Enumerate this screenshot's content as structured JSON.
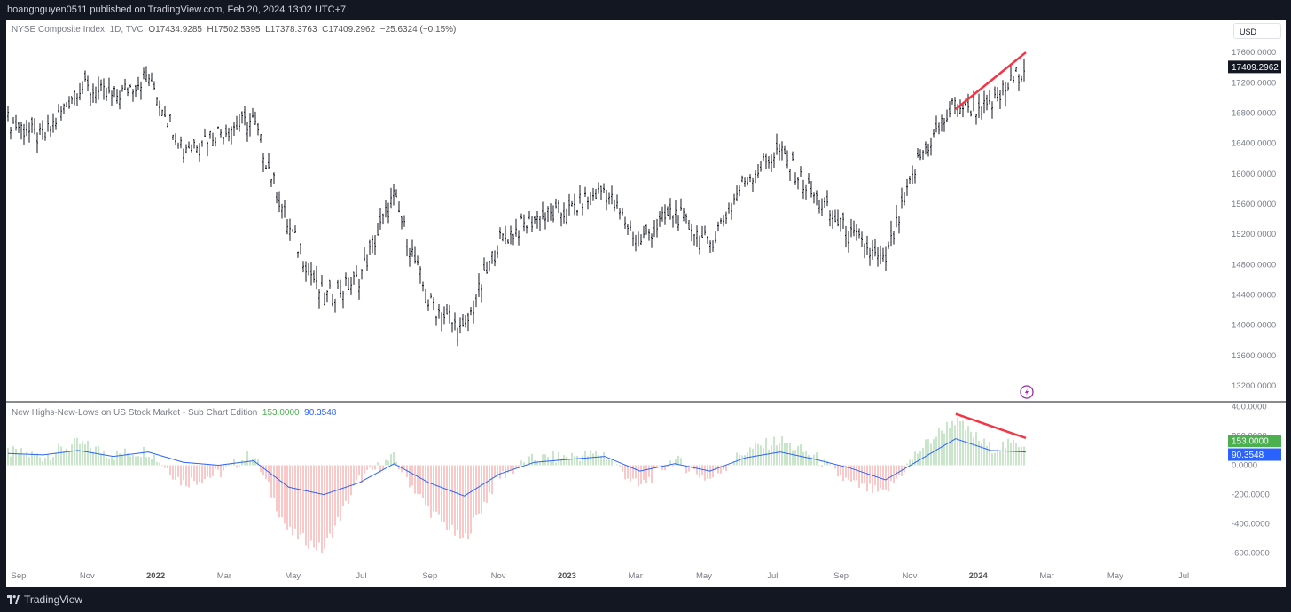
{
  "header": {
    "published": "hoangnguyen0511 published on TradingView.com, Feb 20, 2024 13:02 UTC+7"
  },
  "footer": {
    "brand": "TradingView"
  },
  "currency": "USD",
  "main_legend": {
    "symbol": "NYSE Composite Index, 1D, TVC",
    "open": "O17434.9285",
    "high": "H17502.5395",
    "low": "L17378.3763",
    "close": "C17409.2962",
    "change": "−25.6324 (−0.15%)"
  },
  "sub_legend": {
    "name": "New Highs-New-Lows on US Stock Market - Sub Chart Edition",
    "value1": "153.0000",
    "value2": "90.3548"
  },
  "colors": {
    "up_bar": "#a5d6a7",
    "down_bar": "#f5a3a3",
    "ma_line": "#2962ff",
    "trend": "#f23645",
    "price_bar": "#131722",
    "tag_green": "#4caf50",
    "tag_blue": "#2962ff",
    "tag_black": "#131722"
  },
  "chart_data": [
    {
      "type": "ohlc",
      "title": "NYSE Composite Index, 1D, TVC",
      "ylim": [
        13000,
        17800
      ],
      "y_ticks": [
        "17600.0000",
        "17200.0000",
        "16800.0000",
        "16400.0000",
        "16000.0000",
        "15600.0000",
        "15200.0000",
        "14800.0000",
        "14400.0000",
        "14000.0000",
        "13600.0000",
        "13200.0000"
      ],
      "last_price_tag": "17409.2962",
      "x_ticks": [
        "Sep",
        "Nov",
        "2022",
        "Mar",
        "May",
        "Jul",
        "Sep",
        "Nov",
        "2023",
        "Mar",
        "May",
        "Jul",
        "Sep",
        "Nov",
        "2024",
        "Mar",
        "May",
        "Jul"
      ],
      "bold_ticks": [
        "2022",
        "2023",
        "2024"
      ],
      "x": [
        "2021-09",
        "2021-10",
        "2021-11",
        "2021-12",
        "2022-01",
        "2022-02",
        "2022-03",
        "2022-04",
        "2022-05",
        "2022-06",
        "2022-07",
        "2022-08",
        "2022-09",
        "2022-10",
        "2022-11",
        "2022-12",
        "2023-01",
        "2023-02",
        "2023-03",
        "2023-04",
        "2023-05",
        "2023-06",
        "2023-07",
        "2023-08",
        "2023-09",
        "2023-10",
        "2023-11",
        "2023-12",
        "2024-01",
        "2024-02"
      ],
      "close": [
        16700,
        16450,
        17150,
        17000,
        17300,
        16350,
        16550,
        16700,
        15300,
        14350,
        14600,
        15700,
        14300,
        13900,
        15100,
        15400,
        15500,
        15800,
        15100,
        15500,
        15050,
        15900,
        16300,
        15700,
        15200,
        14800,
        16200,
        16900,
        16850,
        17409
      ],
      "trendline": [
        {
          "x": "2023-12",
          "y": 16850
        },
        {
          "x": "2024-02",
          "y": 17600
        }
      ]
    },
    {
      "type": "bar",
      "title": "New Highs-New-Lows on US Stock Market - Sub Chart Edition",
      "ylim": [
        -650,
        420
      ],
      "y_ticks": [
        "400.0000",
        "200.0000",
        "0.0000",
        "-200.0000",
        "-400.0000",
        "-600.0000"
      ],
      "last_value_tags": [
        "153.0000",
        "90.3548"
      ],
      "x": [
        "2021-09",
        "2021-10",
        "2021-11",
        "2021-12",
        "2022-01",
        "2022-02",
        "2022-03",
        "2022-04",
        "2022-05",
        "2022-06",
        "2022-07",
        "2022-08",
        "2022-09",
        "2022-10",
        "2022-11",
        "2022-12",
        "2023-01",
        "2023-02",
        "2023-03",
        "2023-04",
        "2023-05",
        "2023-06",
        "2023-07",
        "2023-08",
        "2023-09",
        "2023-10",
        "2023-11",
        "2023-12",
        "2024-01",
        "2024-02"
      ],
      "values": [
        90,
        60,
        150,
        70,
        100,
        -120,
        -60,
        80,
        -450,
        -580,
        -100,
        50,
        -300,
        -520,
        -80,
        40,
        60,
        80,
        -150,
        40,
        -100,
        90,
        170,
        60,
        -120,
        -200,
        100,
        310,
        120,
        153
      ],
      "ma": [
        80,
        70,
        100,
        60,
        90,
        20,
        0,
        30,
        -150,
        -200,
        -120,
        10,
        -120,
        -210,
        -60,
        20,
        40,
        60,
        -40,
        10,
        -40,
        50,
        90,
        40,
        -20,
        -100,
        40,
        180,
        100,
        90
      ],
      "trendline": [
        {
          "x": "2023-12",
          "y": 350
        },
        {
          "x": "2024-02",
          "y": 185
        }
      ]
    }
  ]
}
